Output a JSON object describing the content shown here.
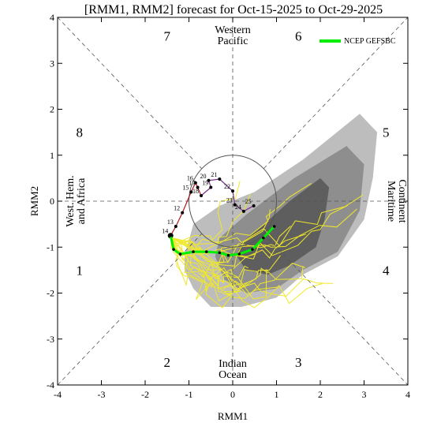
{
  "chart_data": {
    "type": "scatter",
    "title": "[RMM1, RMM2] forecast for Oct-15-2025 to Oct-29-2025",
    "xlabel": "RMM1",
    "ylabel": "RMM2",
    "xlim": [
      -4,
      4
    ],
    "ylim": [
      -4,
      4
    ],
    "x_ticks": [
      "-4",
      "-3",
      "-2",
      "-1",
      "0",
      "1",
      "2",
      "3",
      "4"
    ],
    "y_ticks": [
      "-4",
      "-3",
      "-2",
      "-1",
      "0",
      "1",
      "2",
      "3",
      "4"
    ],
    "phase_numbers": [
      {
        "label": "1",
        "x": -3.5,
        "y": -1.5
      },
      {
        "label": "2",
        "x": -1.5,
        "y": -3.5
      },
      {
        "label": "3",
        "x": 1.5,
        "y": -3.5
      },
      {
        "label": "4",
        "x": 3.5,
        "y": -1.5
      },
      {
        "label": "5",
        "x": 3.5,
        "y": 1.5
      },
      {
        "label": "6",
        "x": 1.5,
        "y": 3.6
      },
      {
        "label": "7",
        "x": -1.5,
        "y": 3.6
      },
      {
        "label": "8",
        "x": -3.5,
        "y": 1.5
      }
    ],
    "regions": {
      "top": [
        "Western",
        "Pacific"
      ],
      "bottom": [
        "Indian",
        "Ocean"
      ],
      "left": [
        "West. Hem.",
        "and Africa"
      ],
      "right": [
        "Maritime",
        "Continent"
      ]
    },
    "legend": {
      "label": "NCEP GEFSBC",
      "color": "#00ee00"
    },
    "colors": {
      "ensemble_members": "#f0e82a",
      "outer_band": "#bdbdbd",
      "mid_band": "#8e8e8e",
      "inner_band": "#5e5e5e",
      "observed_red": "#aa1a1a",
      "observed_purple": "#7a2e8e",
      "forecast_mean": "#00ee00"
    },
    "uncertainty_bands": {
      "outer": [
        [
          -1.1,
          -1.2
        ],
        [
          -0.9,
          -0.5
        ],
        [
          -0.3,
          -0.1
        ],
        [
          0.5,
          0.2
        ],
        [
          1.6,
          0.9
        ],
        [
          2.9,
          1.9
        ],
        [
          3.3,
          1.5
        ],
        [
          3.2,
          0.5
        ],
        [
          3.0,
          -0.4
        ],
        [
          2.4,
          -1.2
        ],
        [
          1.6,
          -1.6
        ],
        [
          1.0,
          -2.1
        ],
        [
          0.2,
          -2.3
        ],
        [
          -0.5,
          -2.3
        ],
        [
          -0.9,
          -1.9
        ],
        [
          -1.1,
          -1.5
        ]
      ],
      "middle": [
        [
          -0.3,
          -0.8
        ],
        [
          0.3,
          -0.3
        ],
        [
          1.4,
          0.5
        ],
        [
          2.6,
          1.2
        ],
        [
          3.0,
          0.8
        ],
        [
          2.9,
          -0.2
        ],
        [
          2.4,
          -1.1
        ],
        [
          1.6,
          -1.5
        ],
        [
          1.0,
          -1.9
        ],
        [
          0.3,
          -2.0
        ],
        [
          -0.2,
          -1.7
        ],
        [
          -0.4,
          -1.2
        ]
      ],
      "inner": [
        [
          0.2,
          -0.9
        ],
        [
          0.6,
          -0.6
        ],
        [
          1.3,
          0.0
        ],
        [
          2.0,
          0.5
        ],
        [
          2.2,
          0.3
        ],
        [
          2.1,
          -0.4
        ],
        [
          1.9,
          -1.0
        ],
        [
          1.3,
          -1.4
        ],
        [
          0.8,
          -1.6
        ],
        [
          0.3,
          -1.5
        ],
        [
          0.1,
          -1.2
        ]
      ]
    },
    "observed": [
      {
        "day": "12",
        "x": -1.15,
        "y": -0.25
      },
      {
        "day": "13",
        "x": -1.3,
        "y": -0.55
      },
      {
        "day": "14",
        "x": -1.42,
        "y": -0.75
      },
      {
        "day": "15",
        "x": -0.95,
        "y": 0.2
      },
      {
        "day": "16",
        "x": -0.85,
        "y": 0.4
      },
      {
        "day": "17",
        "x": -0.8,
        "y": 0.3
      },
      {
        "day": "18",
        "x": -0.72,
        "y": 0.12
      },
      {
        "day": "19",
        "x": -0.5,
        "y": 0.3
      },
      {
        "day": "20",
        "x": -0.55,
        "y": 0.45
      },
      {
        "day": "21",
        "x": -0.3,
        "y": 0.48
      },
      {
        "day": "22",
        "x": 0.0,
        "y": 0.22
      },
      {
        "day": "23",
        "x": 0.05,
        "y": -0.08
      },
      {
        "day": "24",
        "x": 0.25,
        "y": -0.22
      },
      {
        "day": "25",
        "x": 0.48,
        "y": -0.1
      }
    ],
    "forecast_mean_series": [
      {
        "x": -1.42,
        "y": -0.75
      },
      {
        "x": -1.35,
        "y": -1.05
      },
      {
        "x": -1.2,
        "y": -1.15
      },
      {
        "x": -0.9,
        "y": -1.1
      },
      {
        "x": -0.6,
        "y": -1.1
      },
      {
        "x": -0.3,
        "y": -1.12
      },
      {
        "x": -0.1,
        "y": -1.18
      },
      {
        "x": 0.15,
        "y": -1.15
      },
      {
        "x": 0.45,
        "y": -1.05
      },
      {
        "x": 0.7,
        "y": -0.8
      },
      {
        "x": 0.95,
        "y": -0.55
      }
    ]
  }
}
